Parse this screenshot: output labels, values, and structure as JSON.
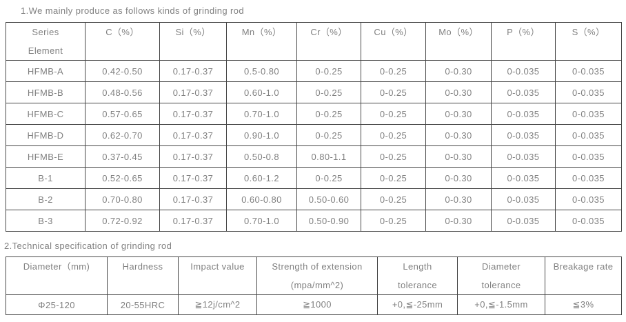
{
  "colors": {
    "text": "#808080",
    "border": "#444444",
    "background": "#ffffff"
  },
  "section1": {
    "title": "1.We mainly produce as follows kinds of grinding rod",
    "table": {
      "header": [
        {
          "line1": "Series",
          "line2": "Element"
        },
        {
          "line1": "C（%）",
          "line2": ""
        },
        {
          "line1": "Si（%）",
          "line2": ""
        },
        {
          "line1": "Mn（%）",
          "line2": ""
        },
        {
          "line1": "Cr（%）",
          "line2": ""
        },
        {
          "line1": "Cu（%）",
          "line2": ""
        },
        {
          "line1": "Mo（%）",
          "line2": ""
        },
        {
          "line1": "P（%）",
          "line2": ""
        },
        {
          "line1": "S（%）",
          "line2": ""
        }
      ],
      "rows": [
        [
          "HFMB-A",
          "0.42-0.50",
          "0.17-0.37",
          "0.5-0.80",
          "0-0.25",
          "0-0.25",
          "0-0.30",
          "0-0.035",
          "0-0.035"
        ],
        [
          "HFMB-B",
          "0.48-0.56",
          "0.17-0.37",
          "0.60-1.0",
          "0-0.25",
          "0-0.25",
          "0-0.30",
          "0-0.035",
          "0-0.035"
        ],
        [
          "HFMB-C",
          "0.57-0.65",
          "0.17-0.37",
          "0.70-1.0",
          "0-0.25",
          "0-0.25",
          "0-0.30",
          "0-0.035",
          "0-0.035"
        ],
        [
          "HFMB-D",
          "0.62-0.70",
          "0.17-0.37",
          "0.90-1.0",
          "0-0.25",
          "0-0.25",
          "0-0.30",
          "0-0.035",
          "0-0.035"
        ],
        [
          "HFMB-E",
          "0.37-0.45",
          "0.17-0.37",
          "0.50-0.8",
          "0.80-1.1",
          "0-0.25",
          "0-0.30",
          "0-0.035",
          "0-0.035"
        ],
        [
          "B-1",
          "0.52-0.65",
          "0.17-0.37",
          "0.60-1.2",
          "0-0.25",
          "0-0.25",
          "0-0.30",
          "0-0.035",
          "0-0.035"
        ],
        [
          "B-2",
          "0.70-0.80",
          "0.17-0.37",
          "0.60-0.80",
          "0.50-0.60",
          "0-0.25",
          "0-0.30",
          "0-0.035",
          "0-0.035"
        ],
        [
          "B-3",
          "0.72-0.92",
          "0.17-0.37",
          "0.70-1.0",
          "0.50-0.90",
          "0-0.25",
          "0-0.30",
          "0-0.035",
          "0-0.035"
        ]
      ]
    }
  },
  "section2": {
    "title": "2.Technical specification of grinding rod",
    "table": {
      "header": [
        {
          "line1": "Diameter（mm)",
          "line2": ""
        },
        {
          "line1": "Hardness",
          "line2": ""
        },
        {
          "line1": "Impact value",
          "line2": ""
        },
        {
          "line1": "Strength of extension",
          "line2": "(mpa/mm^2)"
        },
        {
          "line1": "Length",
          "line2": "tolerance"
        },
        {
          "line1": "Diameter",
          "line2": "tolerance"
        },
        {
          "line1": "Breakage rate",
          "line2": ""
        }
      ],
      "rows": [
        [
          "Φ25-120",
          "20-55HRC",
          "≧12j/cm^2",
          "≧1000",
          "+0,≦-25mm",
          "+0,≦-1.5mm",
          "≦3%"
        ]
      ]
    }
  }
}
